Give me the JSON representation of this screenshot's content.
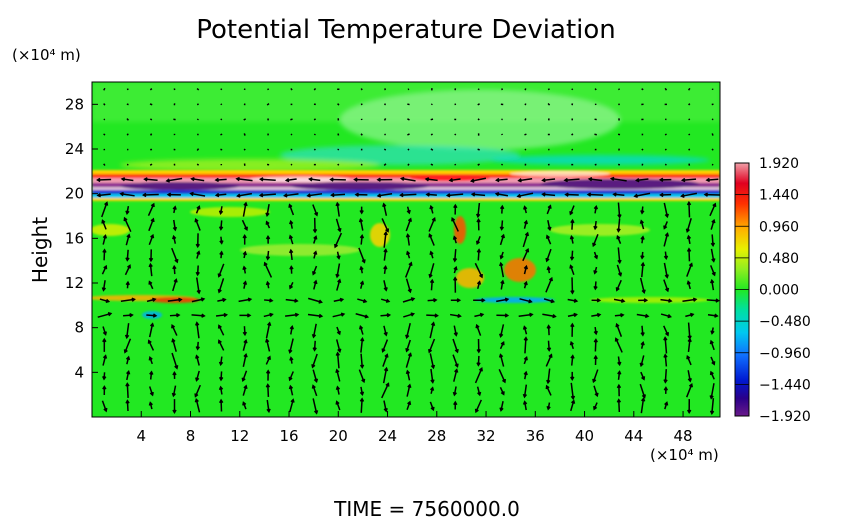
{
  "chart_data": {
    "type": "heatmap",
    "title": "Potential Temperature Deviation",
    "ylabel": "Height",
    "y_unit": "(×10⁴ m)",
    "x_unit": "(×10⁴ m)",
    "xlim": [
      0,
      51
    ],
    "ylim": [
      0,
      30
    ],
    "x_ticks": [
      4,
      8,
      12,
      16,
      20,
      24,
      28,
      32,
      36,
      40,
      44,
      48
    ],
    "y_ticks": [
      4,
      8,
      12,
      16,
      20,
      24,
      28
    ],
    "x_tick_labels": [
      "4",
      "8",
      "12",
      "16",
      "20",
      "24",
      "28",
      "32",
      "36",
      "40",
      "44",
      "48"
    ],
    "y_tick_labels": [
      "4",
      "8",
      "12",
      "16",
      "20",
      "24",
      "28"
    ],
    "colorbar": {
      "range": [
        -1.92,
        1.92
      ],
      "tick_values": [
        1.92,
        1.44,
        0.96,
        0.48,
        0.0,
        -0.48,
        -0.96,
        -1.44,
        -1.92
      ],
      "tick_labels": [
        "1.920",
        "1.440",
        "0.960",
        "0.480",
        "0.000",
        "−0.480",
        "−0.960",
        "−1.440",
        "−1.920"
      ]
    },
    "overlay": "wind vector arrows",
    "grid": false,
    "legend": "colorbar-right"
  },
  "footer": {
    "time_label": "TIME  =  7560000.0"
  },
  "colors": {
    "background_field": "#22e822",
    "arrows": "#000000",
    "axes": "#000000"
  }
}
